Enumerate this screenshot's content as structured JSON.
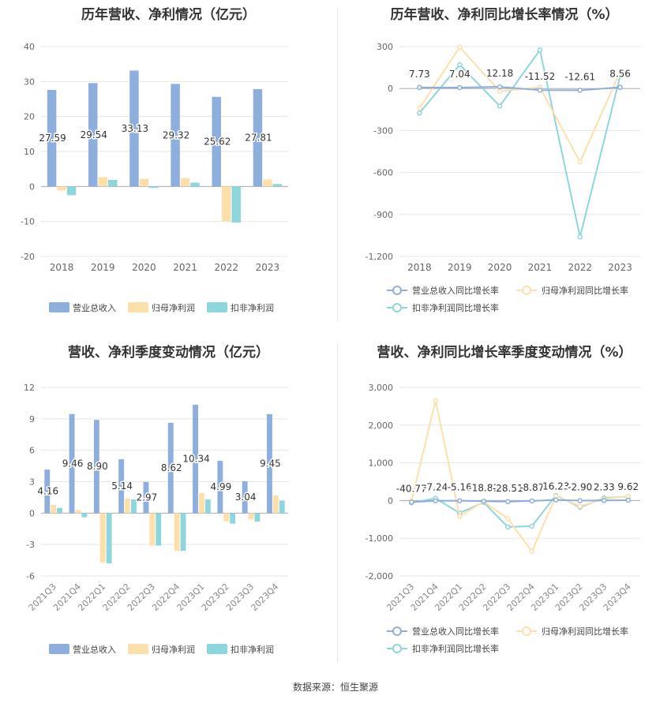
{
  "footer": {
    "source": "数据来源：恒生聚源"
  },
  "colors": {
    "revenue": "#8eaedd",
    "parent_profit": "#fde0a9",
    "deducted_profit": "#8dd6dc",
    "revenue_line": "#8eaedd",
    "parent_line": "#fde0a9",
    "deducted_line": "#8dd6dc"
  },
  "chart_data": [
    {
      "type": "bar",
      "title": "历年营收、净利情况（亿元）",
      "categories": [
        "2018",
        "2019",
        "2020",
        "2021",
        "2022",
        "2023"
      ],
      "series": [
        {
          "name": "营业总收入",
          "values": [
            27.59,
            29.54,
            33.13,
            29.32,
            25.62,
            27.81
          ]
        },
        {
          "name": "归母净利润",
          "values": [
            -1.1,
            2.7,
            2.2,
            2.4,
            -10.0,
            2.0
          ]
        },
        {
          "name": "扣非净利润",
          "values": [
            -2.5,
            1.9,
            -0.4,
            1.1,
            -10.3,
            0.7
          ]
        }
      ],
      "data_labels": [
        "27.59",
        "29.54",
        "33.13",
        "29.32",
        "25.62",
        "27.81"
      ],
      "ylim": [
        -20,
        40
      ],
      "yticks": [
        "-20",
        "-10",
        "0",
        "10",
        "20",
        "30",
        "40"
      ],
      "legend": "bottom"
    },
    {
      "type": "line",
      "title": "历年营收、净利同比增长率情况（%）",
      "categories": [
        "2018",
        "2019",
        "2020",
        "2021",
        "2022",
        "2023"
      ],
      "series": [
        {
          "name": "营业总收入同比增长率",
          "values": [
            7.73,
            7.04,
            12.18,
            -11.52,
            -12.61,
            8.56
          ]
        },
        {
          "name": "归母净利润同比增长率",
          "values": [
            -140,
            295,
            -20,
            10,
            -525,
            120
          ]
        },
        {
          "name": "扣非净利润同比增长率",
          "values": [
            -175,
            170,
            -125,
            275,
            -1060,
            90
          ]
        }
      ],
      "data_labels": [
        "7.73",
        "7.04",
        "12.18",
        "-11.52",
        "-12.61",
        "8.56"
      ],
      "ylim": [
        -1200,
        300
      ],
      "yticks": [
        "-1,200",
        "-900",
        "-600",
        "-300",
        "0",
        "300"
      ],
      "legend": "bottom"
    },
    {
      "type": "bar",
      "title": "营收、净利季度变动情况（亿元）",
      "categories": [
        "2021Q3",
        "2021Q4",
        "2022Q1",
        "2022Q2",
        "2022Q3",
        "2022Q4",
        "2023Q1",
        "2023Q2",
        "2023Q3",
        "2023Q4"
      ],
      "series": [
        {
          "name": "营业总收入",
          "values": [
            4.16,
            9.46,
            8.9,
            5.14,
            2.97,
            8.62,
            10.34,
            4.99,
            3.04,
            9.45
          ]
        },
        {
          "name": "归母净利润",
          "values": [
            0.8,
            0.3,
            -4.7,
            1.4,
            -3.1,
            -3.6,
            1.9,
            -0.8,
            -0.6,
            1.7
          ]
        },
        {
          "name": "扣非净利润",
          "values": [
            0.5,
            -0.4,
            -4.8,
            1.3,
            -3.1,
            -3.6,
            1.3,
            -1.0,
            -0.8,
            1.2
          ]
        }
      ],
      "data_labels": [
        "4.16",
        "9.46",
        "8.90",
        "5.14",
        "2.97",
        "8.62",
        "10.34",
        "4.99",
        "3.04",
        "9.45"
      ],
      "ylim": [
        -6,
        12
      ],
      "yticks": [
        "-6",
        "-3",
        "0",
        "3",
        "6",
        "9",
        "12"
      ],
      "legend": "bottom"
    },
    {
      "type": "line",
      "title": "营收、净利同比增长率季度变动情况（%）",
      "categories": [
        "2021Q3",
        "2021Q4",
        "2022Q1",
        "2022Q2",
        "2022Q3",
        "2022Q4",
        "2023Q1",
        "2023Q2",
        "2023Q3",
        "2023Q4"
      ],
      "series": [
        {
          "name": "营业总收入同比增长率",
          "values": [
            -40.77,
            -7.24,
            -5.16,
            -18.81,
            -28.51,
            -8.87,
            16.23,
            -2.9,
            2.33,
            9.62
          ]
        },
        {
          "name": "归母净利润同比增长率",
          "values": [
            -20,
            2650,
            -420,
            -30,
            -480,
            -1350,
            120,
            -150,
            40,
            110
          ]
        },
        {
          "name": "扣非净利润同比增长率",
          "values": [
            -60,
            60,
            -330,
            -50,
            -700,
            -680,
            140,
            -180,
            70,
            100
          ]
        }
      ],
      "data_labels": [
        "-40.77",
        "-7.24",
        "-5.16",
        "-18.81",
        "-28.51",
        "-8.87",
        "16.23",
        "-2.90",
        "2.33",
        "9.62"
      ],
      "ylim": [
        -2000,
        3000
      ],
      "yticks": [
        "-2,000",
        "-1,000",
        "0",
        "1,000",
        "2,000",
        "3,000"
      ],
      "legend": "bottom"
    }
  ]
}
